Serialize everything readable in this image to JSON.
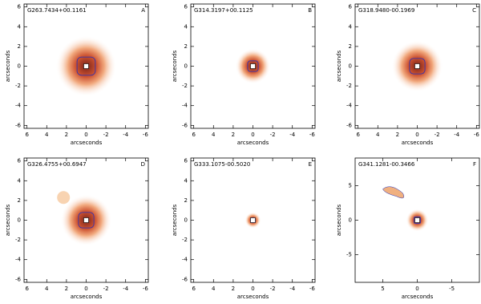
{
  "chart_data": [
    {
      "type": "image",
      "title": "G263.7434+00.1161",
      "panel": "A",
      "xlabel": "arcseconds",
      "ylabel": "arcseconds",
      "xlim": [
        6.3,
        -6.3
      ],
      "ylim": [
        -6.3,
        6.3
      ],
      "xticks": [
        6,
        4,
        2,
        0,
        -2,
        -4,
        -6
      ],
      "yticks": [
        -6,
        -4,
        -2,
        0,
        2,
        4,
        6
      ]
    },
    {
      "type": "image",
      "title": "G314.3197+00.1125",
      "panel": "B",
      "xlabel": "arcseconds",
      "ylabel": "arcseconds",
      "xlim": [
        6.3,
        -6.3
      ],
      "ylim": [
        -6.3,
        6.3
      ],
      "xticks": [
        6,
        4,
        2,
        0,
        -2,
        -4,
        -6
      ],
      "yticks": [
        -6,
        -4,
        -2,
        0,
        2,
        4,
        6
      ]
    },
    {
      "type": "image",
      "title": "G318.9480-00.1969",
      "panel": "C",
      "xlabel": "arcseconds",
      "ylabel": "arcseconds",
      "xlim": [
        6.3,
        -6.3
      ],
      "ylim": [
        -6.3,
        6.3
      ],
      "xticks": [
        6,
        4,
        2,
        0,
        -2,
        -4,
        -6
      ],
      "yticks": [
        -6,
        -4,
        -2,
        0,
        2,
        4,
        6
      ]
    },
    {
      "type": "image",
      "title": "G326.4755+00.6947",
      "panel": "D",
      "xlabel": "arcseconds",
      "ylabel": "arcseconds",
      "xlim": [
        6.3,
        -6.3
      ],
      "ylim": [
        -6.3,
        6.3
      ],
      "xticks": [
        6,
        4,
        2,
        0,
        -2,
        -4,
        -6
      ],
      "yticks": [
        -6,
        -4,
        -2,
        0,
        2,
        4,
        6
      ]
    },
    {
      "type": "image",
      "title": "G333.1075-00.5020",
      "panel": "E",
      "xlabel": "arcseconds",
      "ylabel": "arcseconds",
      "xlim": [
        6.3,
        -6.3
      ],
      "ylim": [
        -6.3,
        6.3
      ],
      "xticks": [
        6,
        4,
        2,
        0,
        -2,
        -4,
        -6
      ],
      "yticks": [
        -6,
        -4,
        -2,
        0,
        2,
        4,
        6
      ]
    },
    {
      "type": "image",
      "title": "G341.1281-00.3466",
      "panel": "F",
      "xlabel": "arcseconds",
      "ylabel": "arcseconds",
      "xlim": [
        9,
        -9
      ],
      "ylim": [
        -9,
        9
      ],
      "xticks": [
        5,
        0,
        -5
      ],
      "yticks": [
        -5,
        0,
        5
      ]
    }
  ]
}
